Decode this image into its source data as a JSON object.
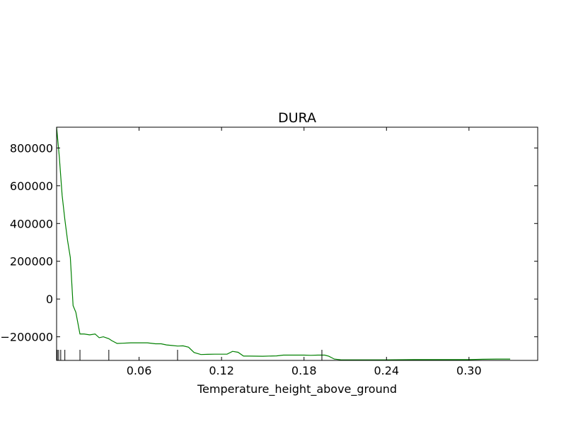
{
  "chart_data": {
    "type": "line",
    "title": "DURA",
    "xlabel": "Temperature_height_above_ground",
    "ylabel": "",
    "xlim": [
      0.0,
      0.35
    ],
    "ylim": [
      -325000,
      910000
    ],
    "x_ticks": [
      0.06,
      0.12,
      0.18,
      0.24,
      0.3
    ],
    "x_tick_labels": [
      "0.06",
      "0.12",
      "0.18",
      "0.24",
      "0.30"
    ],
    "y_ticks": [
      800000,
      600000,
      400000,
      200000,
      0,
      -200000
    ],
    "y_tick_labels": [
      "800000",
      "600000",
      "400000",
      "200000",
      "0",
      "−200000"
    ],
    "grid": false,
    "line_color": "#008000",
    "series": [
      {
        "x": [
          0.0,
          0.002,
          0.004,
          0.006,
          0.008,
          0.01,
          0.012,
          0.014,
          0.017,
          0.02,
          0.024,
          0.028,
          0.031,
          0.034,
          0.036,
          0.038,
          0.04,
          0.044,
          0.048,
          0.054,
          0.06,
          0.066,
          0.072,
          0.076,
          0.08,
          0.084,
          0.088,
          0.092,
          0.096,
          0.1,
          0.105,
          0.11,
          0.115,
          0.12,
          0.124,
          0.128,
          0.132,
          0.136,
          0.14,
          0.15,
          0.16,
          0.165,
          0.17,
          0.175,
          0.18,
          0.185,
          0.19,
          0.195,
          0.198,
          0.202,
          0.207,
          0.212,
          0.22,
          0.23,
          0.24,
          0.26,
          0.28,
          0.3,
          0.31,
          0.32,
          0.33
        ],
        "y": [
          910000,
          750000,
          550000,
          420000,
          310000,
          220000,
          -35000,
          -70000,
          -185000,
          -185000,
          -190000,
          -185000,
          -205000,
          -200000,
          -205000,
          -210000,
          -220000,
          -235000,
          -234000,
          -232000,
          -232000,
          -232000,
          -237000,
          -237000,
          -243000,
          -246000,
          -249000,
          -248000,
          -255000,
          -283000,
          -294000,
          -293000,
          -292000,
          -292000,
          -292000,
          -277000,
          -282000,
          -302000,
          -302000,
          -303000,
          -301000,
          -297000,
          -297000,
          -297000,
          -297000,
          -298000,
          -297000,
          -297000,
          -303000,
          -318000,
          -322000,
          -322000,
          -322000,
          -322000,
          -322000,
          -321000,
          -321000,
          -321000,
          -319000,
          -318000,
          -318000
        ]
      }
    ],
    "rug_x": [
      0.0005,
      0.0015,
      0.003,
      0.006,
      0.017,
      0.038,
      0.088,
      0.193
    ]
  }
}
